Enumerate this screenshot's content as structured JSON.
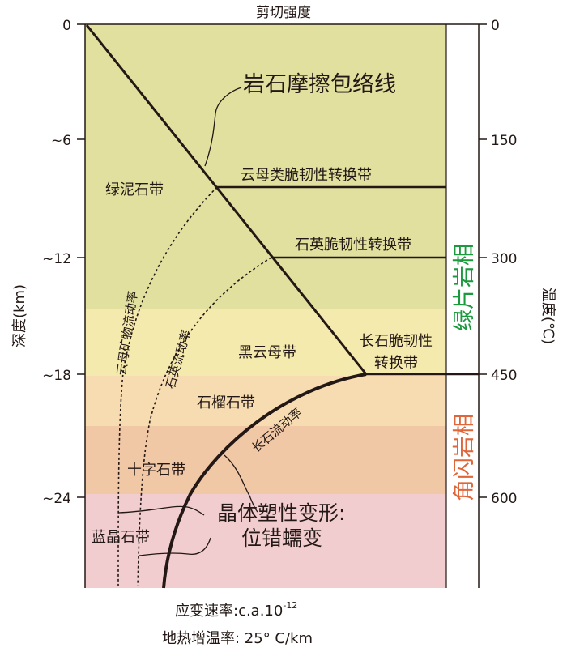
{
  "top_label": "剪切强度",
  "left_axis": {
    "label": "深度(km)",
    "ticks": [
      "0",
      "~6",
      "~12",
      "~18",
      "~24"
    ]
  },
  "right_axis": {
    "label": "温度(℃)",
    "ticks": [
      "0",
      "150",
      "300",
      "450",
      "600"
    ]
  },
  "zones": {
    "chlorite": "绿泥石带",
    "biotite": "黑云母带",
    "garnet": "石榴石带",
    "staurolite": "十字石带",
    "kyanite": "蓝晶石带"
  },
  "transitions": {
    "mica": "云母类脆韧性转换带",
    "quartz": "石英脆韧性转换带",
    "feldspar_line1": "长石脆韧",
    "feldspar_line1b": "性",
    "feldspar_line2": "转换带"
  },
  "envelope_label": "岩石摩擦包络线",
  "flow_labels": {
    "mica": "云母矿物流动率",
    "quartz": "石英流动率",
    "feldspar": "长石流动率"
  },
  "plastic_label": {
    "line1": "晶体塑性变形:",
    "line2": "位错蠕变"
  },
  "facies": {
    "greenschist": "绿片岩相",
    "amphibolite": "角闪岩相"
  },
  "colors": {
    "greenschist": "#1a9a3c",
    "amphibolite": "#e0663a",
    "chlorite_bg": "#e1e09e",
    "biotite_bg": "#f5eaad",
    "garnet_bg": "#f6dcb0",
    "staurolite_bg": "#f1c8a5",
    "kyanite_bg": "#f2cdcf"
  },
  "footer": {
    "strain_label": "应变速率:c.a.10",
    "strain_exp": "-12",
    "geotherm": "地热增温率:  25° C/km"
  }
}
